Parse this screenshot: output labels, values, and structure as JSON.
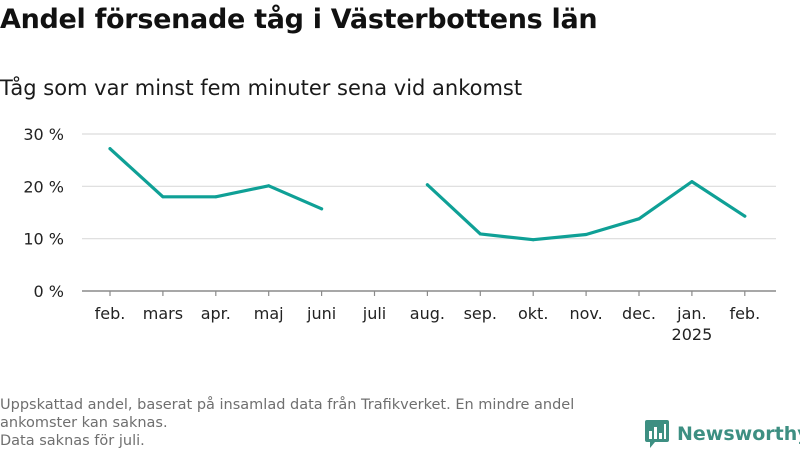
{
  "title": "Andel försenade tåg i Västerbottens län",
  "subtitle": "Tåg som var minst fem minuter sena vid ankomst",
  "footnote": {
    "line1": "Uppskattad andel, baserat på insamlad data från Trafikverket. En mindre andel ankomster kan saknas.",
    "line2": "Data saknas för juli."
  },
  "brand": {
    "name": "Newsworthy",
    "icon": "bar-chart-logo-icon",
    "color": "#3d8f82"
  },
  "chart_data": {
    "type": "line",
    "categories": [
      "feb.",
      "mars",
      "apr.",
      "maj",
      "juni",
      "juli",
      "aug.",
      "sep.",
      "okt.",
      "nov.",
      "dec.",
      "jan.",
      "feb."
    ],
    "category_sublabels": [
      "",
      "",
      "",
      "",
      "",
      "",
      "",
      "",
      "",
      "",
      "",
      "2025",
      ""
    ],
    "series": [
      {
        "values": [
          27.2,
          18.0,
          18.0,
          20.1,
          15.7,
          null,
          20.3,
          10.9,
          9.8,
          10.8,
          13.8,
          20.9,
          14.3
        ],
        "color": "#0fa096"
      }
    ],
    "ylim": [
      0,
      30
    ],
    "yticks": [
      0,
      10,
      20,
      30
    ],
    "ytick_labels": [
      "0 %",
      "10 %",
      "20 %",
      "30 %"
    ],
    "grid": true,
    "xlabel": "",
    "ylabel": ""
  }
}
